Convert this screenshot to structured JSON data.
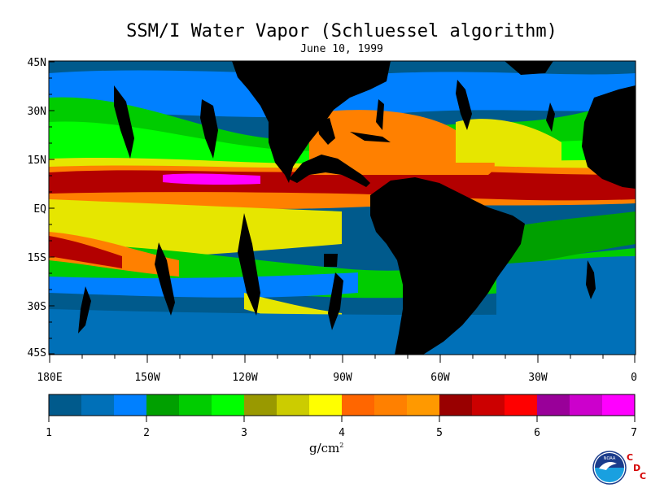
{
  "title": "SSM/I Water Vapor (Schluessel algorithm)",
  "subtitle": "June 10, 1999",
  "map": {
    "lat_labels": [
      "45N",
      "30N",
      "15N",
      "EQ",
      "15S",
      "30S",
      "45S"
    ],
    "lon_labels": [
      "180E",
      "150W",
      "120W",
      "90W",
      "60W",
      "30W",
      "0"
    ],
    "colors": {
      "land": "#000000",
      "very_dry": "#005a8c",
      "dry": "#0070b8",
      "moist_blue": "#0080ff",
      "green_dark": "#00a000",
      "green": "#00cc00",
      "green_bright": "#00ff00",
      "yellow": "#e6e600",
      "orange": "#ff8000",
      "red_dark": "#b30000",
      "magenta": "#ff00ff"
    }
  },
  "colorbar": {
    "colors": [
      "#005a8c",
      "#0070b8",
      "#0080ff",
      "#00a000",
      "#00cc00",
      "#00ff00",
      "#999900",
      "#cccc00",
      "#ffff00",
      "#ff6600",
      "#ff8000",
      "#ff9900",
      "#990000",
      "#cc0000",
      "#ff0000",
      "#990099",
      "#cc00cc",
      "#ff00ff"
    ],
    "tick_labels": [
      "1",
      "2",
      "3",
      "4",
      "5",
      "6",
      "7"
    ],
    "units_label": "g/cm",
    "units_superscript": "2"
  },
  "logos": {
    "noaa_text": "NOAA",
    "cdc_letters": [
      "C",
      "D",
      "C"
    ]
  }
}
